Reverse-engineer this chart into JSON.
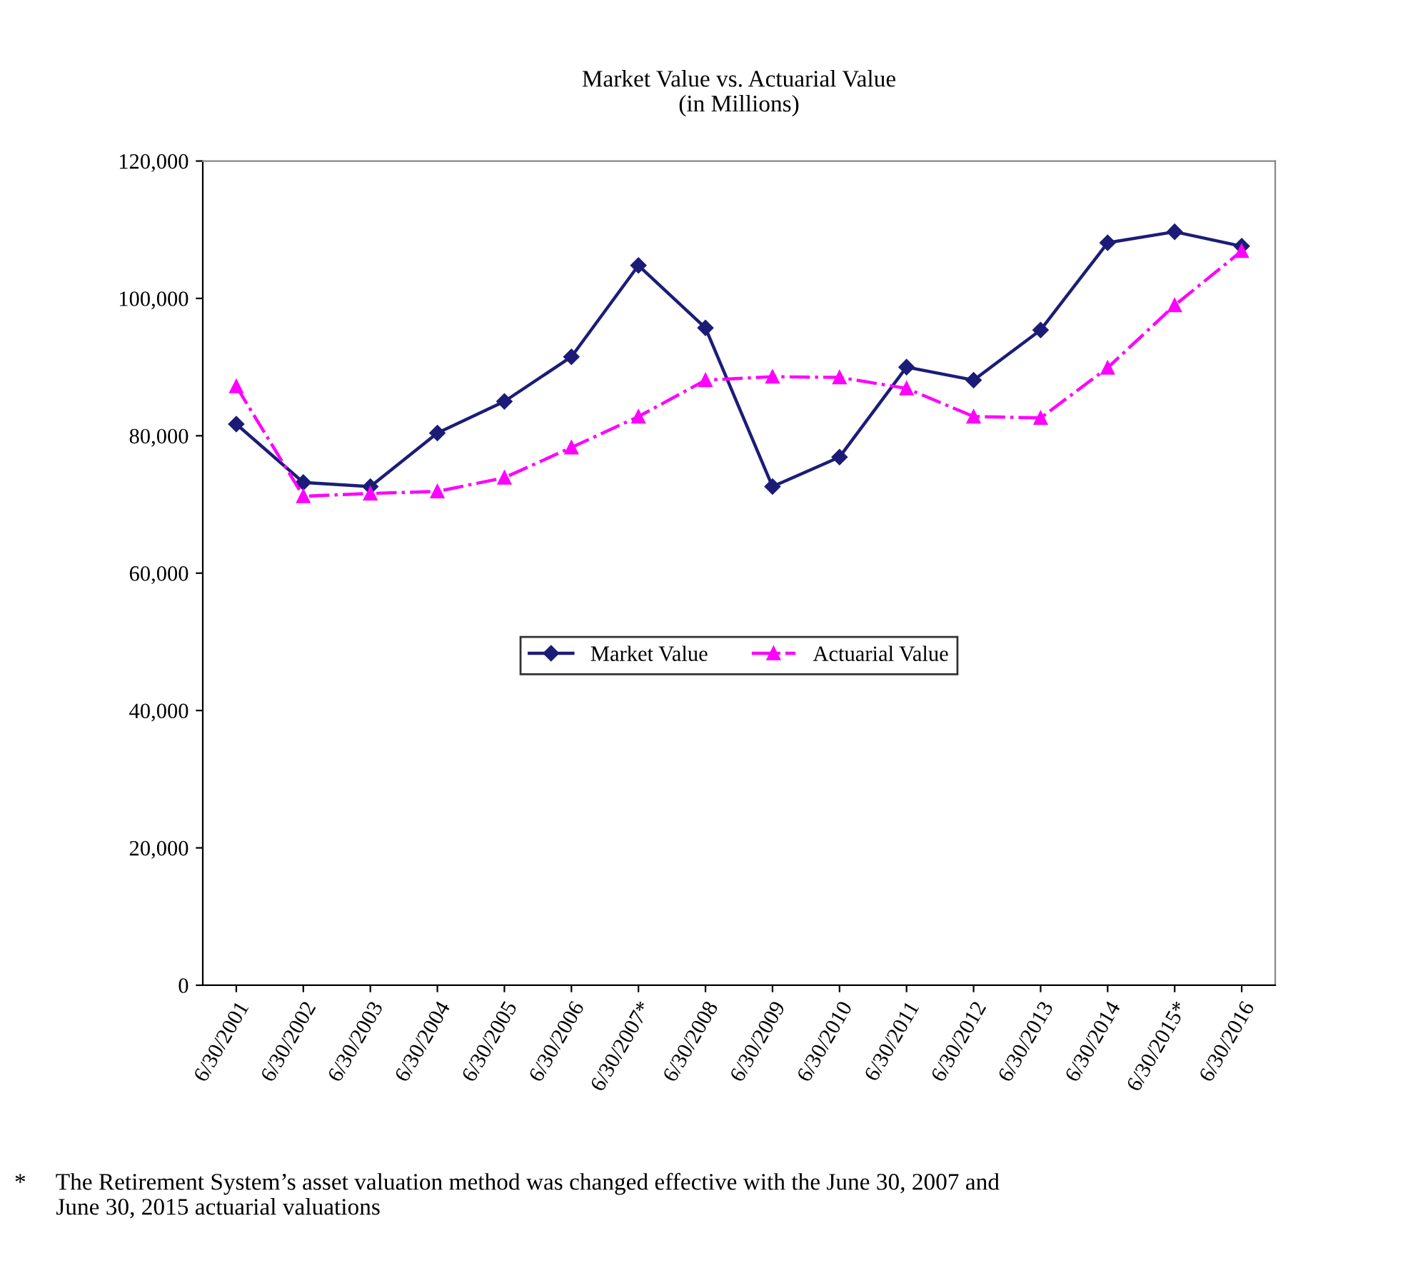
{
  "chart_data": {
    "type": "line",
    "title": "Market Value vs. Actuarial Value\n(in Millions)",
    "categories": [
      "6/30/2001",
      "6/30/2002",
      "6/30/2003",
      "6/30/2004",
      "6/30/2005",
      "6/30/2006",
      "6/30/2007*",
      "6/30/2008",
      "6/30/2009",
      "6/30/2010",
      "6/30/2011",
      "6/30/2012",
      "6/30/2013",
      "6/30/2014",
      "6/30/2015*",
      "6/30/2016"
    ],
    "series": [
      {
        "name": "Market Value",
        "color": "#1c1c78",
        "marker": "diamond",
        "line_style": "solid",
        "values": [
          81700,
          73200,
          72600,
          80400,
          85000,
          91500,
          104800,
          95700,
          72600,
          76900,
          90000,
          88100,
          95400,
          108100,
          109700,
          107600
        ]
      },
      {
        "name": "Actuarial Value",
        "color": "#ff00ff",
        "marker": "triangle",
        "line_style": "dashed",
        "values": [
          87200,
          71200,
          71600,
          71900,
          73900,
          78300,
          82800,
          88100,
          88600,
          88500,
          86900,
          82800,
          82600,
          89900,
          99000,
          106900
        ]
      }
    ],
    "ylim": [
      0,
      120000
    ],
    "yticks": [
      0,
      {
        "value": 20000,
        "label": "20,000"
      },
      {
        "value": 40000,
        "label": "40,000"
      },
      {
        "value": 60000,
        "label": "60,000"
      },
      {
        "value": 80000,
        "label": "80,000"
      },
      {
        "value": 100000,
        "label": "100,000"
      },
      {
        "value": 120000,
        "label": "120,000"
      }
    ],
    "grid": false,
    "legend": "center",
    "annotations": [
      "*     The Retirement System’s asset valuation method was changed effective with the June 30, 2007 and\n       June 30, 2015 actuarial valuations"
    ]
  }
}
